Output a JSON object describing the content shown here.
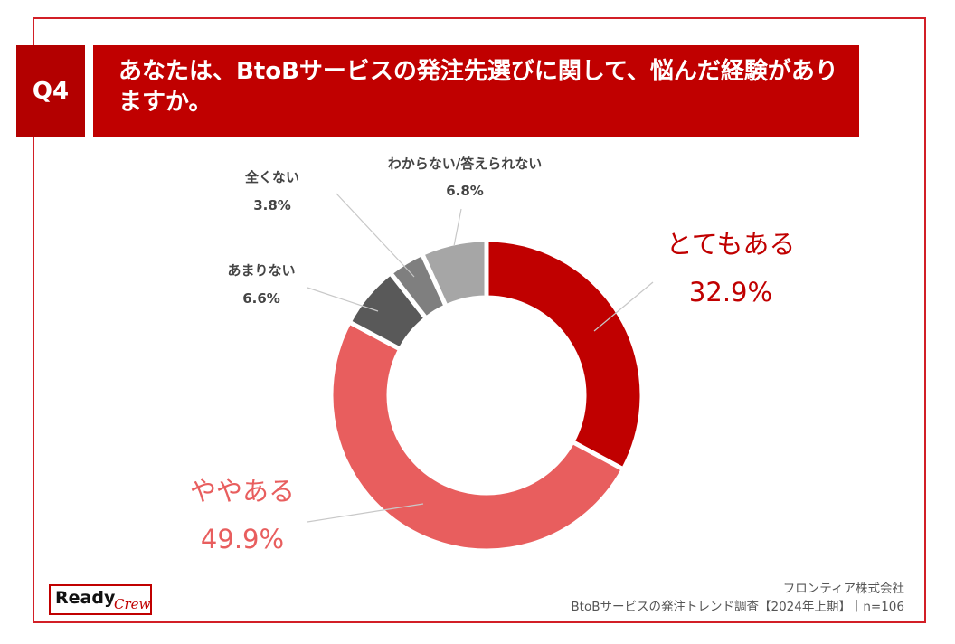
{
  "header": {
    "question_no": "Q4",
    "question_line1": "あなたは、BtoBサービスの発注先選びに関して、悩んだ経験があり",
    "question_line2": "ますか。"
  },
  "chart_data": {
    "type": "pie",
    "donut": true,
    "categories": [
      "とてもある",
      "ややある",
      "あまりない",
      "全くない",
      "わからない/答えられない"
    ],
    "values": [
      32.9,
      49.9,
      6.6,
      3.8,
      6.8
    ],
    "labels": [
      "32.9%",
      "49.9%",
      "6.6%",
      "3.8%",
      "6.8%"
    ],
    "colors": [
      "#c00000",
      "#e85e5e",
      "#595959",
      "#7f7f7f",
      "#a6a6a6"
    ],
    "start": "top",
    "direction": "clockwise"
  },
  "logo": {
    "ready": "Ready",
    "crew": "Crew"
  },
  "footer": {
    "company": "フロンティア株式会社",
    "source": "BtoBサービスの発注トレンド調査【2024年上期】｜n=106"
  }
}
